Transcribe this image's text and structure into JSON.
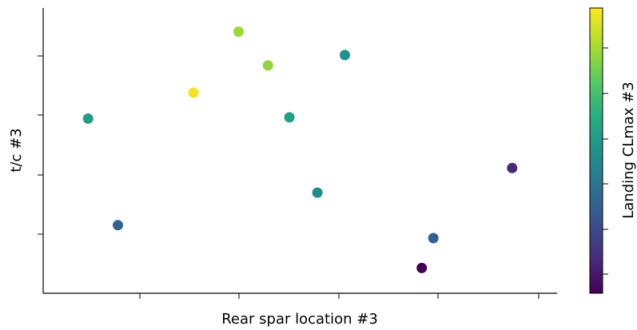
{
  "chart_data": {
    "type": "scatter",
    "title": "",
    "xlabel": "Rear spar location #3",
    "ylabel": "t/c #3",
    "colorbar_label": "Landing CLmax #3",
    "colormap": "viridis",
    "tick_labels_visible": false,
    "xlim": [
      0.0,
      1.0
    ],
    "ylim": [
      0.0,
      1.0
    ],
    "clim": [
      0.0,
      1.0
    ],
    "grid": false,
    "legend": "none",
    "points": [
      {
        "x": 0.045,
        "y": 0.62,
        "c": 0.55
      },
      {
        "x": 0.109,
        "y": 0.21,
        "c": 0.32
      },
      {
        "x": 0.271,
        "y": 0.72,
        "c": 0.98
      },
      {
        "x": 0.368,
        "y": 0.955,
        "c": 0.85
      },
      {
        "x": 0.431,
        "y": 0.825,
        "c": 0.83
      },
      {
        "x": 0.477,
        "y": 0.625,
        "c": 0.55
      },
      {
        "x": 0.537,
        "y": 0.335,
        "c": 0.47
      },
      {
        "x": 0.596,
        "y": 0.865,
        "c": 0.5
      },
      {
        "x": 0.761,
        "y": 0.045,
        "c": 0.0
      },
      {
        "x": 0.786,
        "y": 0.16,
        "c": 0.3
      },
      {
        "x": 0.955,
        "y": 0.43,
        "c": 0.12
      }
    ]
  }
}
